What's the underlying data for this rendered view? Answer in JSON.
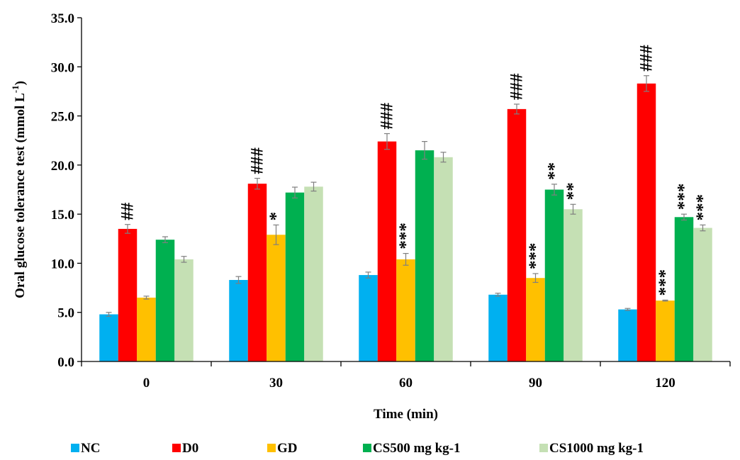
{
  "chart_data": {
    "type": "bar",
    "xlabel": "Time (min)",
    "ylabel": "Oral glucose tolerance test (mmol L",
    "ylabel_sup": "-1",
    "ylabel_close": ")",
    "ylim": [
      0,
      35
    ],
    "yticks": [
      "0.0",
      "5.0",
      "10.0",
      "15.0",
      "20.0",
      "25.0",
      "30.0",
      "35.0"
    ],
    "categories": [
      "0",
      "30",
      "60",
      "90",
      "120"
    ],
    "legend_position": "bottom",
    "grid": false,
    "series": [
      {
        "name": "NC",
        "color": "#00b0f0",
        "values": [
          4.8,
          8.3,
          8.8,
          6.8,
          5.3
        ],
        "errors": [
          0.2,
          0.35,
          0.3,
          0.15,
          0.1
        ],
        "annotations": [
          "",
          "",
          "",
          "",
          ""
        ]
      },
      {
        "name": "D0",
        "color": "#ff0000",
        "values": [
          13.5,
          18.1,
          22.4,
          25.7,
          28.3
        ],
        "errors": [
          0.45,
          0.55,
          0.8,
          0.5,
          0.8
        ],
        "annotations": [
          "##",
          "###",
          "###",
          "###",
          "###"
        ]
      },
      {
        "name": "GD",
        "color": "#ffc000",
        "values": [
          6.5,
          12.9,
          10.4,
          8.5,
          6.2
        ],
        "errors": [
          0.15,
          1.0,
          0.6,
          0.45,
          0.05
        ],
        "annotations": [
          "",
          "*",
          "***",
          "***",
          "***"
        ]
      },
      {
        "name": "CS500 mg kg-1",
        "color": "#00b050",
        "values": [
          12.4,
          17.2,
          21.5,
          17.5,
          14.7
        ],
        "errors": [
          0.3,
          0.55,
          0.9,
          0.55,
          0.3
        ],
        "annotations": [
          "",
          "",
          "",
          "**",
          "***"
        ]
      },
      {
        "name": "CS1000 mg kg-1",
        "color": "#c5e0b4",
        "values": [
          10.4,
          17.8,
          20.8,
          15.5,
          13.6
        ],
        "errors": [
          0.3,
          0.45,
          0.5,
          0.5,
          0.3
        ],
        "annotations": [
          "",
          "",
          "",
          "**",
          "***"
        ]
      }
    ]
  }
}
